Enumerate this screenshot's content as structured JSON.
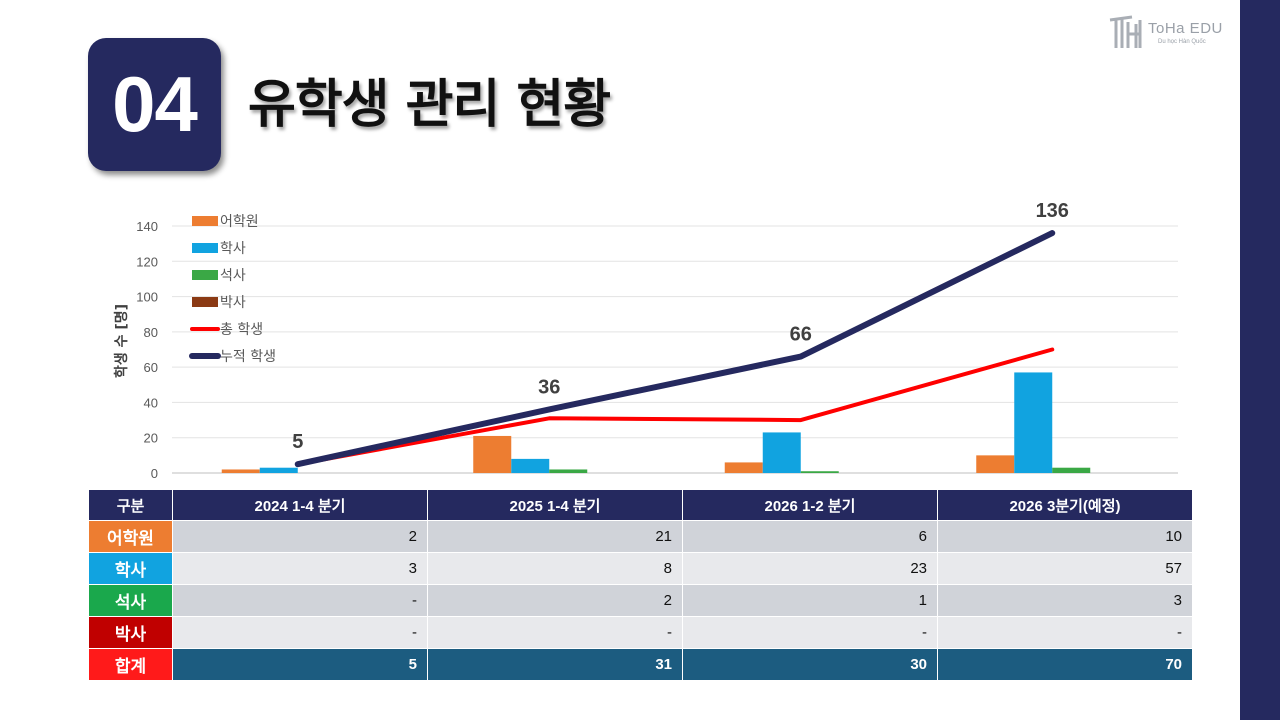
{
  "header": {
    "section_number": "04",
    "title": "유학생 관리 현황"
  },
  "logo": {
    "name": "ToHa EDU",
    "tagline": "Du học Hàn Quốc"
  },
  "colors": {
    "navy": "#25295f",
    "orange": "#ed7d31",
    "blue": "#11a3e0",
    "green": "#3aa845",
    "brown": "#8b3a14",
    "red": "#ff0000",
    "table_total": "#1c5c80"
  },
  "chart_data": {
    "type": "bar",
    "categories": [
      "2024 1-4 분기",
      "2025 1-4 분기",
      "2026 1-2 분기",
      "2026 3분기(예정)"
    ],
    "ylabel": "학생 수 [명]",
    "ylim": [
      0,
      140
    ],
    "yticks": [
      0,
      20,
      40,
      60,
      80,
      100,
      120,
      140
    ],
    "grid": true,
    "legend_position": "top-left",
    "series": [
      {
        "name": "어학원",
        "kind": "bar",
        "color": "#ed7d31",
        "values": [
          2,
          21,
          6,
          10
        ]
      },
      {
        "name": "학사",
        "kind": "bar",
        "color": "#11a3e0",
        "values": [
          3,
          8,
          23,
          57
        ]
      },
      {
        "name": "석사",
        "kind": "bar",
        "color": "#3aa845",
        "values": [
          0,
          2,
          1,
          3
        ]
      },
      {
        "name": "박사",
        "kind": "bar",
        "color": "#8b3a14",
        "values": [
          0,
          0,
          0,
          0
        ]
      },
      {
        "name": "총 학생",
        "kind": "line",
        "color": "#ff0000",
        "values": [
          5,
          31,
          30,
          70
        ]
      },
      {
        "name": "누적 학생",
        "kind": "line",
        "color": "#25295f",
        "values": [
          5,
          36,
          66,
          136
        ],
        "labels": [
          "5",
          "36",
          "66",
          "136"
        ]
      }
    ]
  },
  "table": {
    "headers": [
      "구분",
      "2024 1-4 분기",
      "2025 1-4 분기",
      "2026 1-2 분기",
      "2026 3분기(예정)"
    ],
    "rows": [
      {
        "label": "어학원",
        "color": "#ed7d31",
        "cells": [
          "2",
          "21",
          "6",
          "10"
        ]
      },
      {
        "label": "학사",
        "color": "#11a3e0",
        "cells": [
          "3",
          "8",
          "23",
          "57"
        ]
      },
      {
        "label": "석사",
        "color": "#1aa84c",
        "cells": [
          "-",
          "2",
          "1",
          "3"
        ]
      },
      {
        "label": "박사",
        "color": "#c00000",
        "cells": [
          "-",
          "-",
          "-",
          "-"
        ]
      }
    ],
    "total": {
      "label": "합계",
      "cells": [
        "5",
        "31",
        "30",
        "70"
      ]
    }
  }
}
